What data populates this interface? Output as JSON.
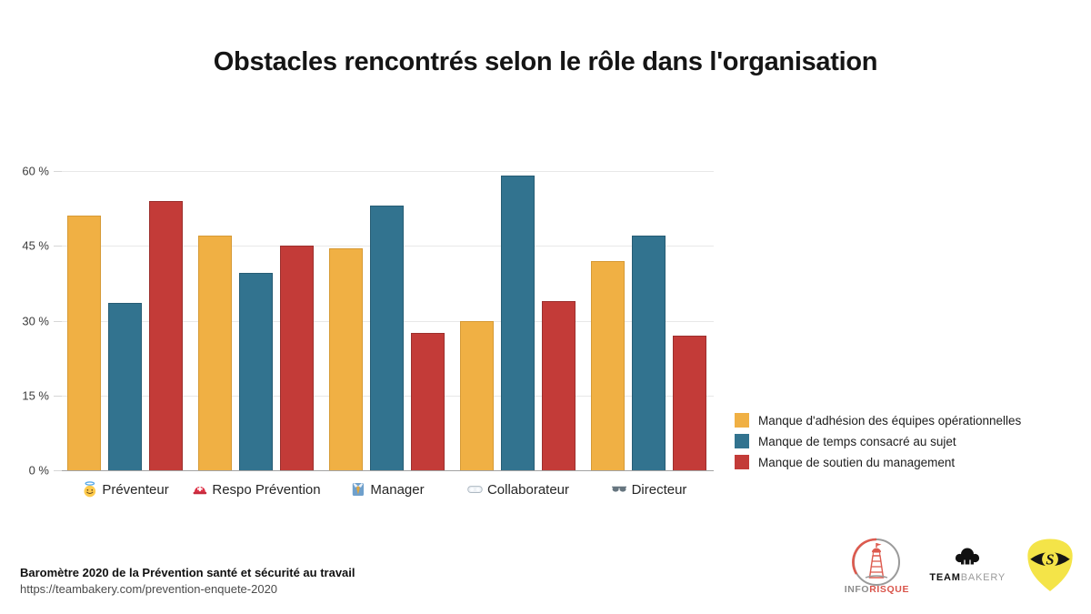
{
  "title": "Obstacles rencontrés selon le rôle dans l'organisation",
  "chart_data": {
    "type": "bar",
    "title": "Obstacles rencontrés selon le rôle dans l'organisation",
    "categories": [
      "Préventeur",
      "Respo Prévention",
      "Manager",
      "Collaborateur",
      "Directeur"
    ],
    "category_icons": [
      "angel",
      "rescue-helmet",
      "necktie",
      "goggles",
      "sunglasses"
    ],
    "category_emojis": [
      "😇",
      "⛑",
      "👔",
      "🥽",
      "🕶"
    ],
    "series": [
      {
        "name": "Manque d'adhésion des équipes opérationnelles",
        "color": "#F0B044",
        "edge": "#D69A35",
        "values": [
          51,
          47,
          44.5,
          30,
          42
        ]
      },
      {
        "name": "Manque de temps consacré au sujet",
        "color": "#32738F",
        "edge": "#265C74",
        "values": [
          33.5,
          39.5,
          53,
          59,
          47
        ]
      },
      {
        "name": "Manque de soutien du management",
        "color": "#C33B38",
        "edge": "#9C2F2D",
        "values": [
          54,
          45,
          27.5,
          34,
          27
        ]
      }
    ],
    "y_ticks": [
      "60 %",
      "45 %",
      "30 %",
      "15 %",
      "0 %"
    ],
    "ylim": [
      0,
      60
    ],
    "grid": true,
    "legend_position": "right"
  },
  "footer": {
    "source_bold": "Baromètre 2020 de la Prévention santé et sécurité au travail",
    "source_url": "https://teambakery.com/prevention-enquete-2020"
  },
  "logos": {
    "inforisque": {
      "text_grey": "INFO",
      "text_red": "RISQUE"
    },
    "teambakery": {
      "text_bold": "TEAM",
      "text_light": "BAKERY"
    },
    "shield": {
      "letter": "S"
    }
  }
}
